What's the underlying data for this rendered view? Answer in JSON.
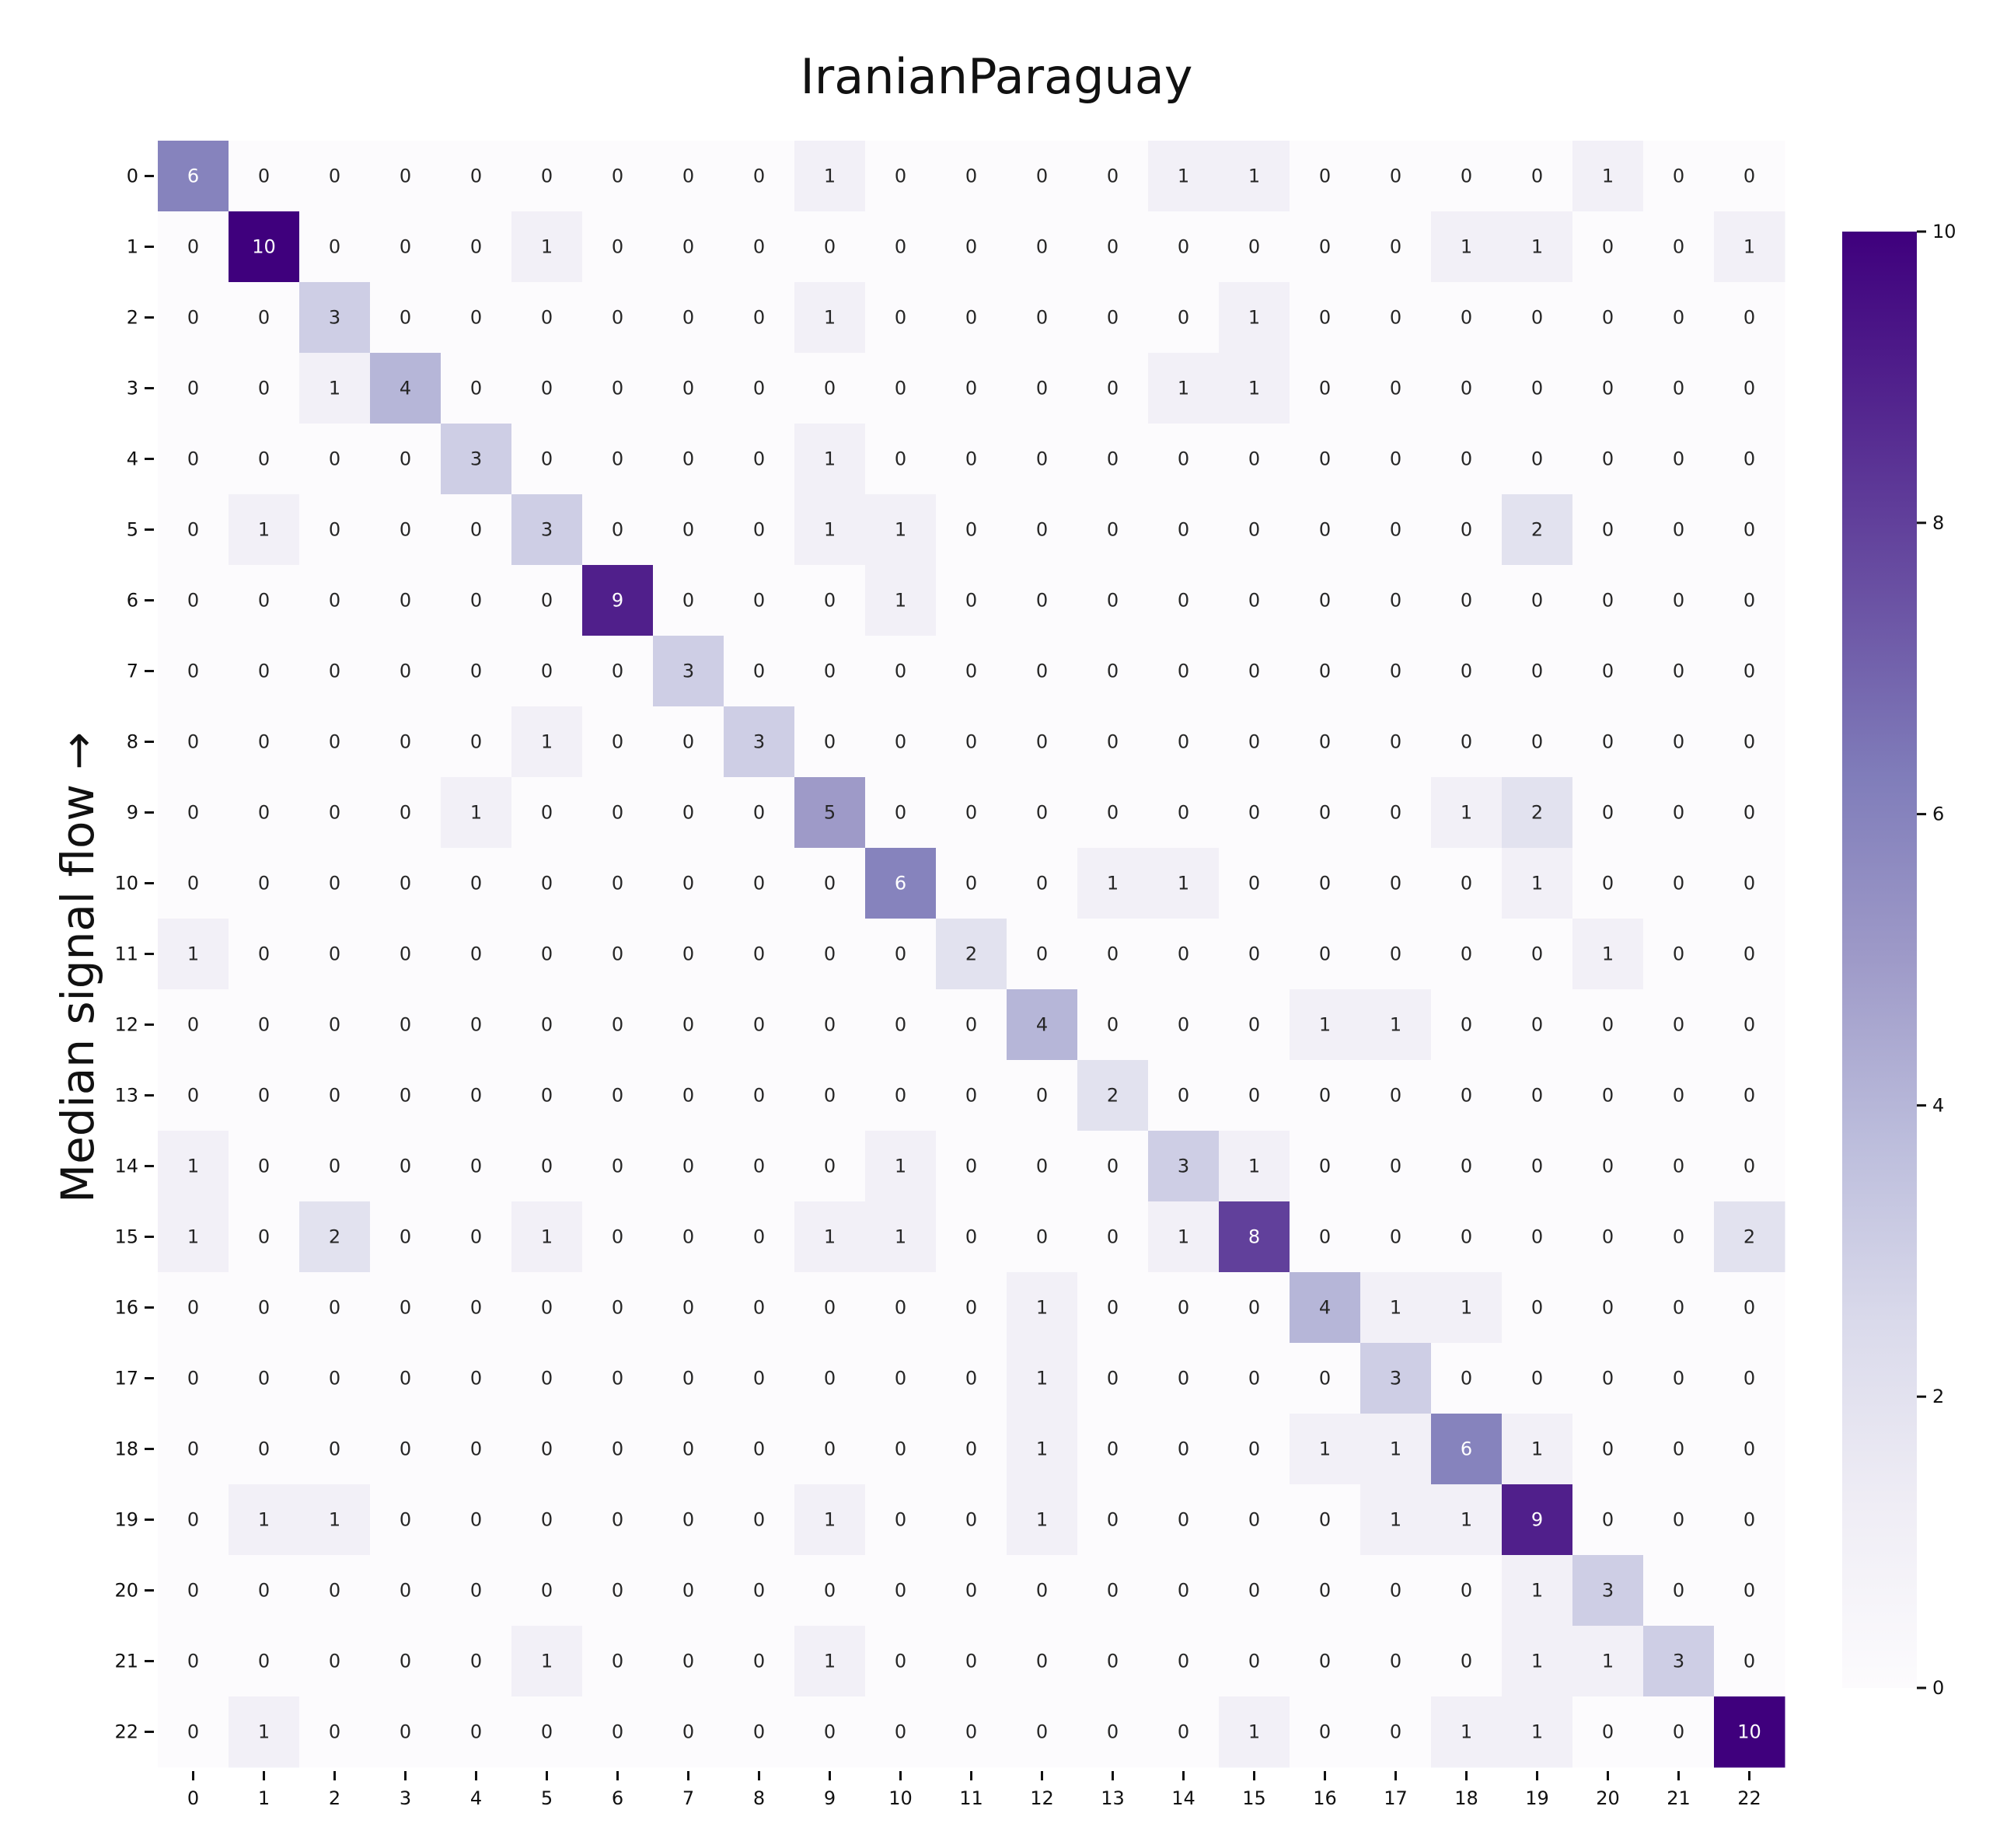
{
  "chart_data": {
    "type": "heatmap",
    "title": "IranianParaguay",
    "xlabel": "",
    "ylabel": "Median signal flow →",
    "x_categories": [
      "0",
      "1",
      "2",
      "3",
      "4",
      "5",
      "6",
      "7",
      "8",
      "9",
      "10",
      "11",
      "12",
      "13",
      "14",
      "15",
      "16",
      "17",
      "18",
      "19",
      "20",
      "21",
      "22"
    ],
    "y_categories": [
      "0",
      "1",
      "2",
      "3",
      "4",
      "5",
      "6",
      "7",
      "8",
      "9",
      "10",
      "11",
      "12",
      "13",
      "14",
      "15",
      "16",
      "17",
      "18",
      "19",
      "20",
      "21",
      "22"
    ],
    "values": [
      [
        6,
        0,
        0,
        0,
        0,
        0,
        0,
        0,
        0,
        1,
        0,
        0,
        0,
        0,
        1,
        1,
        0,
        0,
        0,
        0,
        1,
        0,
        0
      ],
      [
        0,
        10,
        0,
        0,
        0,
        1,
        0,
        0,
        0,
        0,
        0,
        0,
        0,
        0,
        0,
        0,
        0,
        0,
        1,
        1,
        0,
        0,
        1
      ],
      [
        0,
        0,
        3,
        0,
        0,
        0,
        0,
        0,
        0,
        1,
        0,
        0,
        0,
        0,
        0,
        1,
        0,
        0,
        0,
        0,
        0,
        0,
        0
      ],
      [
        0,
        0,
        1,
        4,
        0,
        0,
        0,
        0,
        0,
        0,
        0,
        0,
        0,
        0,
        1,
        1,
        0,
        0,
        0,
        0,
        0,
        0,
        0
      ],
      [
        0,
        0,
        0,
        0,
        3,
        0,
        0,
        0,
        0,
        1,
        0,
        0,
        0,
        0,
        0,
        0,
        0,
        0,
        0,
        0,
        0,
        0,
        0
      ],
      [
        0,
        1,
        0,
        0,
        0,
        3,
        0,
        0,
        0,
        1,
        1,
        0,
        0,
        0,
        0,
        0,
        0,
        0,
        0,
        2,
        0,
        0,
        0
      ],
      [
        0,
        0,
        0,
        0,
        0,
        0,
        9,
        0,
        0,
        0,
        1,
        0,
        0,
        0,
        0,
        0,
        0,
        0,
        0,
        0,
        0,
        0,
        0
      ],
      [
        0,
        0,
        0,
        0,
        0,
        0,
        0,
        3,
        0,
        0,
        0,
        0,
        0,
        0,
        0,
        0,
        0,
        0,
        0,
        0,
        0,
        0,
        0
      ],
      [
        0,
        0,
        0,
        0,
        0,
        1,
        0,
        0,
        3,
        0,
        0,
        0,
        0,
        0,
        0,
        0,
        0,
        0,
        0,
        0,
        0,
        0,
        0
      ],
      [
        0,
        0,
        0,
        0,
        1,
        0,
        0,
        0,
        0,
        5,
        0,
        0,
        0,
        0,
        0,
        0,
        0,
        0,
        1,
        2,
        0,
        0,
        0
      ],
      [
        0,
        0,
        0,
        0,
        0,
        0,
        0,
        0,
        0,
        0,
        6,
        0,
        0,
        1,
        1,
        0,
        0,
        0,
        0,
        1,
        0,
        0,
        0
      ],
      [
        1,
        0,
        0,
        0,
        0,
        0,
        0,
        0,
        0,
        0,
        0,
        2,
        0,
        0,
        0,
        0,
        0,
        0,
        0,
        0,
        1,
        0,
        0
      ],
      [
        0,
        0,
        0,
        0,
        0,
        0,
        0,
        0,
        0,
        0,
        0,
        0,
        4,
        0,
        0,
        0,
        1,
        1,
        0,
        0,
        0,
        0,
        0
      ],
      [
        0,
        0,
        0,
        0,
        0,
        0,
        0,
        0,
        0,
        0,
        0,
        0,
        0,
        2,
        0,
        0,
        0,
        0,
        0,
        0,
        0,
        0,
        0
      ],
      [
        1,
        0,
        0,
        0,
        0,
        0,
        0,
        0,
        0,
        0,
        1,
        0,
        0,
        0,
        3,
        1,
        0,
        0,
        0,
        0,
        0,
        0,
        0
      ],
      [
        1,
        0,
        2,
        0,
        0,
        1,
        0,
        0,
        0,
        1,
        1,
        0,
        0,
        0,
        1,
        8,
        0,
        0,
        0,
        0,
        0,
        0,
        2
      ],
      [
        0,
        0,
        0,
        0,
        0,
        0,
        0,
        0,
        0,
        0,
        0,
        0,
        1,
        0,
        0,
        0,
        4,
        1,
        1,
        0,
        0,
        0,
        0
      ],
      [
        0,
        0,
        0,
        0,
        0,
        0,
        0,
        0,
        0,
        0,
        0,
        0,
        1,
        0,
        0,
        0,
        0,
        3,
        0,
        0,
        0,
        0,
        0
      ],
      [
        0,
        0,
        0,
        0,
        0,
        0,
        0,
        0,
        0,
        0,
        0,
        0,
        1,
        0,
        0,
        0,
        1,
        1,
        6,
        1,
        0,
        0,
        0
      ],
      [
        0,
        1,
        1,
        0,
        0,
        0,
        0,
        0,
        0,
        1,
        0,
        0,
        1,
        0,
        0,
        0,
        0,
        1,
        1,
        9,
        0,
        0,
        0
      ],
      [
        0,
        0,
        0,
        0,
        0,
        0,
        0,
        0,
        0,
        0,
        0,
        0,
        0,
        0,
        0,
        0,
        0,
        0,
        0,
        1,
        3,
        0,
        0
      ],
      [
        0,
        0,
        0,
        0,
        0,
        1,
        0,
        0,
        0,
        1,
        0,
        0,
        0,
        0,
        0,
        0,
        0,
        0,
        0,
        1,
        1,
        3,
        0
      ],
      [
        0,
        1,
        0,
        0,
        0,
        0,
        0,
        0,
        0,
        0,
        0,
        0,
        0,
        0,
        0,
        1,
        0,
        0,
        1,
        1,
        0,
        0,
        10
      ]
    ],
    "colormap": "Purples",
    "vmin": 0,
    "vmax": 10,
    "colorbar_ticks": [
      "0",
      "2",
      "4",
      "6",
      "8",
      "10"
    ],
    "grid": false,
    "legend": "colorbar-right"
  }
}
